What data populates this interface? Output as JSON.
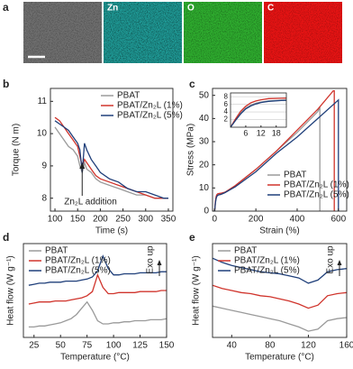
{
  "panel_a": {
    "panel": "a",
    "maps": [
      "Zn",
      "O",
      "C"
    ]
  },
  "chart_data": [
    {
      "type": "line",
      "panel": "b",
      "x_label": "Time (s)",
      "y_label": "Torque (N m)",
      "annotation": "Zn₂L addition",
      "x": [
        100,
        110,
        120,
        130,
        140,
        150,
        155,
        160,
        165,
        170,
        180,
        190,
        200,
        220,
        240,
        260,
        280,
        300,
        320,
        340,
        350
      ],
      "series": [
        {
          "name": "PBAT",
          "color": "#9a9a9a",
          "values": [
            10.2,
            10.0,
            9.8,
            9.6,
            9.5,
            9.3,
            9.0,
            8.8,
            9.1,
            8.9,
            8.8,
            8.6,
            8.5,
            8.4,
            8.3,
            8.2,
            8.1,
            8.1,
            8.0,
            8.0,
            8.0
          ]
        },
        {
          "name": "PBAT/Zn₂L (1%)",
          "color": "#d0342c",
          "values": [
            10.5,
            10.4,
            10.2,
            10.0,
            9.8,
            9.6,
            9.3,
            9.0,
            9.2,
            9.1,
            8.9,
            8.7,
            8.6,
            8.5,
            8.4,
            8.3,
            8.2,
            8.1,
            8.0,
            8.0,
            8.0
          ]
        },
        {
          "name": "PBAT/Zn₂L (5%)",
          "color": "#1f3f7a",
          "values": [
            10.4,
            10.3,
            10.2,
            10.1,
            9.9,
            9.7,
            9.5,
            8.8,
            9.7,
            9.5,
            9.2,
            9.0,
            8.8,
            8.6,
            8.5,
            8.3,
            8.2,
            8.2,
            8.1,
            8.0,
            8.0
          ]
        }
      ],
      "xlim": [
        90,
        360
      ],
      "xticks": [
        100,
        150,
        200,
        250,
        300,
        350
      ],
      "ylim": [
        7.6,
        11.4
      ],
      "yticks": [
        8,
        9,
        10,
        11
      ],
      "legend": "upper right"
    },
    {
      "type": "line",
      "panel": "c",
      "x_label": "Strain (%)",
      "y_label": "Stress (MPa)",
      "series": [
        {
          "name": "PBAT",
          "color": "#9a9a9a",
          "x": [
            0,
            2,
            4,
            6,
            8,
            10,
            12,
            15,
            20,
            30,
            50,
            100,
            200,
            300,
            400,
            500,
            510,
            510
          ],
          "values": [
            0,
            2,
            3.8,
            5,
            5.8,
            6.3,
            6.6,
            6.9,
            7.1,
            7.2,
            8,
            11,
            18,
            26,
            34,
            43,
            45,
            0
          ]
        },
        {
          "name": "PBAT/Zn₂L (1%)",
          "color": "#d0342c",
          "x": [
            0,
            2,
            4,
            6,
            8,
            10,
            12,
            15,
            20,
            30,
            50,
            100,
            200,
            300,
            400,
            500,
            575,
            580,
            580
          ],
          "values": [
            0,
            2.2,
            4.2,
            5.5,
            6.4,
            6.9,
            7.2,
            7.5,
            7.6,
            7.7,
            8.2,
            11,
            18,
            26,
            35,
            44,
            52,
            52,
            0
          ]
        },
        {
          "name": "PBAT/Zn₂L (5%)",
          "color": "#1f3f7a",
          "x": [
            0,
            2,
            4,
            6,
            8,
            10,
            12,
            15,
            20,
            30,
            50,
            100,
            200,
            300,
            400,
            500,
            600,
            600
          ],
          "values": [
            0,
            1.8,
            3.5,
            4.8,
            5.6,
            6.1,
            6.5,
            6.8,
            7.0,
            7.2,
            8,
            10.5,
            17,
            25,
            32,
            40,
            48,
            0
          ]
        }
      ],
      "xlim": [
        -10,
        640
      ],
      "xticks": [
        0,
        200,
        400,
        600
      ],
      "ylim": [
        0,
        53
      ],
      "yticks": [
        0,
        10,
        20,
        30,
        40,
        50
      ],
      "legend": "lower right",
      "inset": {
        "xlim": [
          0,
          22
        ],
        "ylim": [
          0,
          9
        ],
        "xticks": [
          6,
          12,
          18
        ],
        "yticks": [
          2,
          4,
          6,
          8
        ]
      }
    },
    {
      "type": "line",
      "panel": "d",
      "x_label": "Temperature (°C)",
      "y_label": "Heat flow (W g⁻¹)",
      "annotation": "Exo up",
      "x": [
        20,
        25,
        30,
        35,
        40,
        45,
        50,
        55,
        60,
        65,
        70,
        75,
        80,
        85,
        90,
        95,
        100,
        105,
        110,
        115,
        120,
        125,
        130,
        135,
        140,
        145,
        150
      ],
      "series": [
        {
          "name": "PBAT",
          "color": "#9a9a9a",
          "values": [
            2.0,
            2.0,
            2.1,
            2.1,
            2.2,
            2.3,
            2.4,
            2.6,
            2.8,
            3.2,
            3.8,
            4.4,
            3.6,
            2.6,
            2.3,
            2.3,
            2.4,
            2.4,
            2.5,
            2.5,
            2.6,
            2.6,
            2.6,
            2.7,
            2.7,
            2.7,
            2.8
          ]
        },
        {
          "name": "PBAT/Zn₂L (1%)",
          "color": "#d0342c",
          "values": [
            4.2,
            4.3,
            4.4,
            4.4,
            4.4,
            4.5,
            4.5,
            4.5,
            4.6,
            4.7,
            4.8,
            5.0,
            5.4,
            7.0,
            5.8,
            5.2,
            5.2,
            5.3,
            5.3,
            5.3,
            5.3,
            5.4,
            5.4,
            5.4,
            5.4,
            5.5,
            5.5
          ]
        },
        {
          "name": "PBAT/Zn₂L (5%)",
          "color": "#1f3f7a",
          "values": [
            6.0,
            6.1,
            6.2,
            6.2,
            6.3,
            6.3,
            6.3,
            6.4,
            6.4,
            6.4,
            6.5,
            6.6,
            6.8,
            7.4,
            8.8,
            7.6,
            7.0,
            7.0,
            7.1,
            7.1,
            7.1,
            7.2,
            7.2,
            7.2,
            7.2,
            7.3,
            7.3
          ]
        }
      ],
      "xlim": [
        15,
        150
      ],
      "xticks": [
        25,
        50,
        75,
        100,
        125,
        150
      ],
      "ylim": [
        1,
        10
      ],
      "legend": "upper left"
    },
    {
      "type": "line",
      "panel": "e",
      "x_label": "Temperature (°C)",
      "y_label": "Heat flow (W g⁻¹)",
      "annotation": "Exo up",
      "x": [
        20,
        30,
        40,
        50,
        60,
        70,
        80,
        90,
        100,
        110,
        120,
        130,
        140,
        150,
        160
      ],
      "series": [
        {
          "name": "PBAT",
          "color": "#9a9a9a",
          "values": [
            4.0,
            3.8,
            3.6,
            3.4,
            3.2,
            3.0,
            2.8,
            2.6,
            2.3,
            2.0,
            1.6,
            1.8,
            2.6,
            2.8,
            2.9
          ]
        },
        {
          "name": "PBAT/Zn₂L (1%)",
          "color": "#d0342c",
          "values": [
            6.0,
            5.7,
            5.5,
            5.3,
            5.2,
            5.0,
            4.9,
            4.7,
            4.5,
            4.2,
            3.8,
            4.1,
            5.0,
            5.2,
            5.3
          ]
        },
        {
          "name": "PBAT/Zn₂L (5%)",
          "color": "#1f3f7a",
          "values": [
            8.6,
            8.2,
            7.9,
            7.7,
            7.5,
            7.3,
            7.2,
            7.1,
            6.9,
            6.7,
            6.2,
            6.5,
            7.3,
            7.5,
            7.6
          ]
        }
      ],
      "xlim": [
        20,
        160
      ],
      "xticks": [
        40,
        80,
        120,
        160
      ],
      "ylim": [
        1,
        10
      ],
      "legend": "upper left"
    }
  ]
}
